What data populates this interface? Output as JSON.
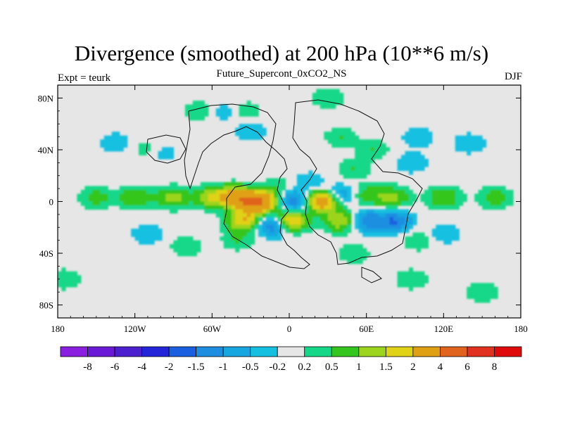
{
  "header": {
    "title": "Divergence (smoothed) at 200 hPa (10**6 m/s)",
    "subtitle": "Future_Supercont_0xCO2_NS",
    "left_label": "Expt = teurk",
    "right_label": "DJF"
  },
  "chart_data": {
    "type": "heatmap",
    "title": "Divergence (smoothed) at 200 hPa (10**6 m/s)",
    "subtitle": "Future_Supercont_0xCO2_NS",
    "left_annotation": "Expt = teurk",
    "right_annotation": "DJF",
    "xlim": [
      -180,
      180
    ],
    "ylim": [
      -90,
      90
    ],
    "x_ticks": [
      {
        "value": -180,
        "label": "180"
      },
      {
        "value": -120,
        "label": "120W"
      },
      {
        "value": -60,
        "label": "60W"
      },
      {
        "value": 0,
        "label": "0"
      },
      {
        "value": 60,
        "label": "60E"
      },
      {
        "value": 120,
        "label": "120E"
      },
      {
        "value": 180,
        "label": "180"
      }
    ],
    "y_ticks": [
      {
        "value": 80,
        "label": "80N"
      },
      {
        "value": 40,
        "label": "40N"
      },
      {
        "value": 0,
        "label": "0"
      },
      {
        "value": -40,
        "label": "40S"
      },
      {
        "value": -80,
        "label": "80S"
      }
    ],
    "colorbar": {
      "labels": [
        "-8",
        "-6",
        "-4",
        "-2",
        "-1.5",
        "-1",
        "-0.5",
        "-0.2",
        "0.2",
        "0.5",
        "1",
        "1.5",
        "2",
        "4",
        "6",
        "8"
      ],
      "colors": [
        "#8a1fe0",
        "#6a1ad6",
        "#4c20cf",
        "#2424d8",
        "#1a5fe0",
        "#1e8fe0",
        "#17a7e0",
        "#14c0e0",
        "#e6e6e6",
        "#14d888",
        "#34c61e",
        "#9cd41e",
        "#e0d214",
        "#e0a014",
        "#e0641e",
        "#e0321e",
        "#e00a0a"
      ]
    },
    "features": [
      {
        "lon": -150,
        "lat": 3,
        "value": 0.7
      },
      {
        "lon": -120,
        "lat": 3,
        "value": 1.0
      },
      {
        "lon": -90,
        "lat": 3,
        "value": 1.2
      },
      {
        "lon": -60,
        "lat": 3,
        "value": 1.5
      },
      {
        "lon": -40,
        "lat": 4,
        "value": 3.0
      },
      {
        "lon": -25,
        "lat": 0,
        "value": 5.0
      },
      {
        "lon": 25,
        "lat": 0,
        "value": 3.0
      },
      {
        "lon": 80,
        "lat": 3,
        "value": 1.2
      },
      {
        "lon": 120,
        "lat": 3,
        "value": 1.0
      },
      {
        "lon": 160,
        "lat": 3,
        "value": 0.8
      },
      {
        "lon": 0,
        "lat": -15,
        "value": 2.5
      },
      {
        "lon": -35,
        "lat": -15,
        "value": 2.0
      },
      {
        "lon": 40,
        "lat": -15,
        "value": 1.5
      },
      {
        "lon": -12,
        "lat": -18,
        "value": -2.0
      },
      {
        "lon": 5,
        "lat": 0,
        "value": -1.5
      },
      {
        "lon": 60,
        "lat": -15,
        "value": -1.5
      },
      {
        "lon": 82,
        "lat": -15,
        "value": -1.5
      },
      {
        "lon": 40,
        "lat": 5,
        "value": -1.0
      },
      {
        "lon": -30,
        "lat": 6,
        "value": -1.0
      },
      {
        "lon": 15,
        "lat": 15,
        "value": -0.5
      },
      {
        "lon": -10,
        "lat": 12,
        "value": 0.5
      },
      {
        "lon": 60,
        "lat": 5,
        "value": 0.8
      },
      {
        "lon": -135,
        "lat": 45,
        "value": -0.5
      },
      {
        "lon": -110,
        "lat": 40,
        "value": 0.5
      },
      {
        "lon": -100,
        "lat": 38,
        "value": -0.5
      },
      {
        "lon": -30,
        "lat": 55,
        "value": -0.5
      },
      {
        "lon": -70,
        "lat": 70,
        "value": 0.5
      },
      {
        "lon": -50,
        "lat": 70,
        "value": -0.5
      },
      {
        "lon": -35,
        "lat": 70,
        "value": 0.5
      },
      {
        "lon": 30,
        "lat": 80,
        "value": 0.5
      },
      {
        "lon": 40,
        "lat": 50,
        "value": 0.5
      },
      {
        "lon": 50,
        "lat": 25,
        "value": 0.5
      },
      {
        "lon": 65,
        "lat": 40,
        "value": 0.5
      },
      {
        "lon": 95,
        "lat": 30,
        "value": -0.5
      },
      {
        "lon": 100,
        "lat": 50,
        "value": -0.5
      },
      {
        "lon": 140,
        "lat": 45,
        "value": -0.5
      },
      {
        "lon": -110,
        "lat": -25,
        "value": -0.5
      },
      {
        "lon": -80,
        "lat": -35,
        "value": 0.5
      },
      {
        "lon": -40,
        "lat": -30,
        "value": 0.5
      },
      {
        "lon": 50,
        "lat": -40,
        "value": 0.5
      },
      {
        "lon": 100,
        "lat": -30,
        "value": 0.5
      },
      {
        "lon": 120,
        "lat": -25,
        "value": -0.5
      },
      {
        "lon": 95,
        "lat": -60,
        "value": 0.5
      },
      {
        "lon": 150,
        "lat": -70,
        "value": 0.5
      },
      {
        "lon": -175,
        "lat": -60,
        "value": 0.5
      }
    ]
  }
}
